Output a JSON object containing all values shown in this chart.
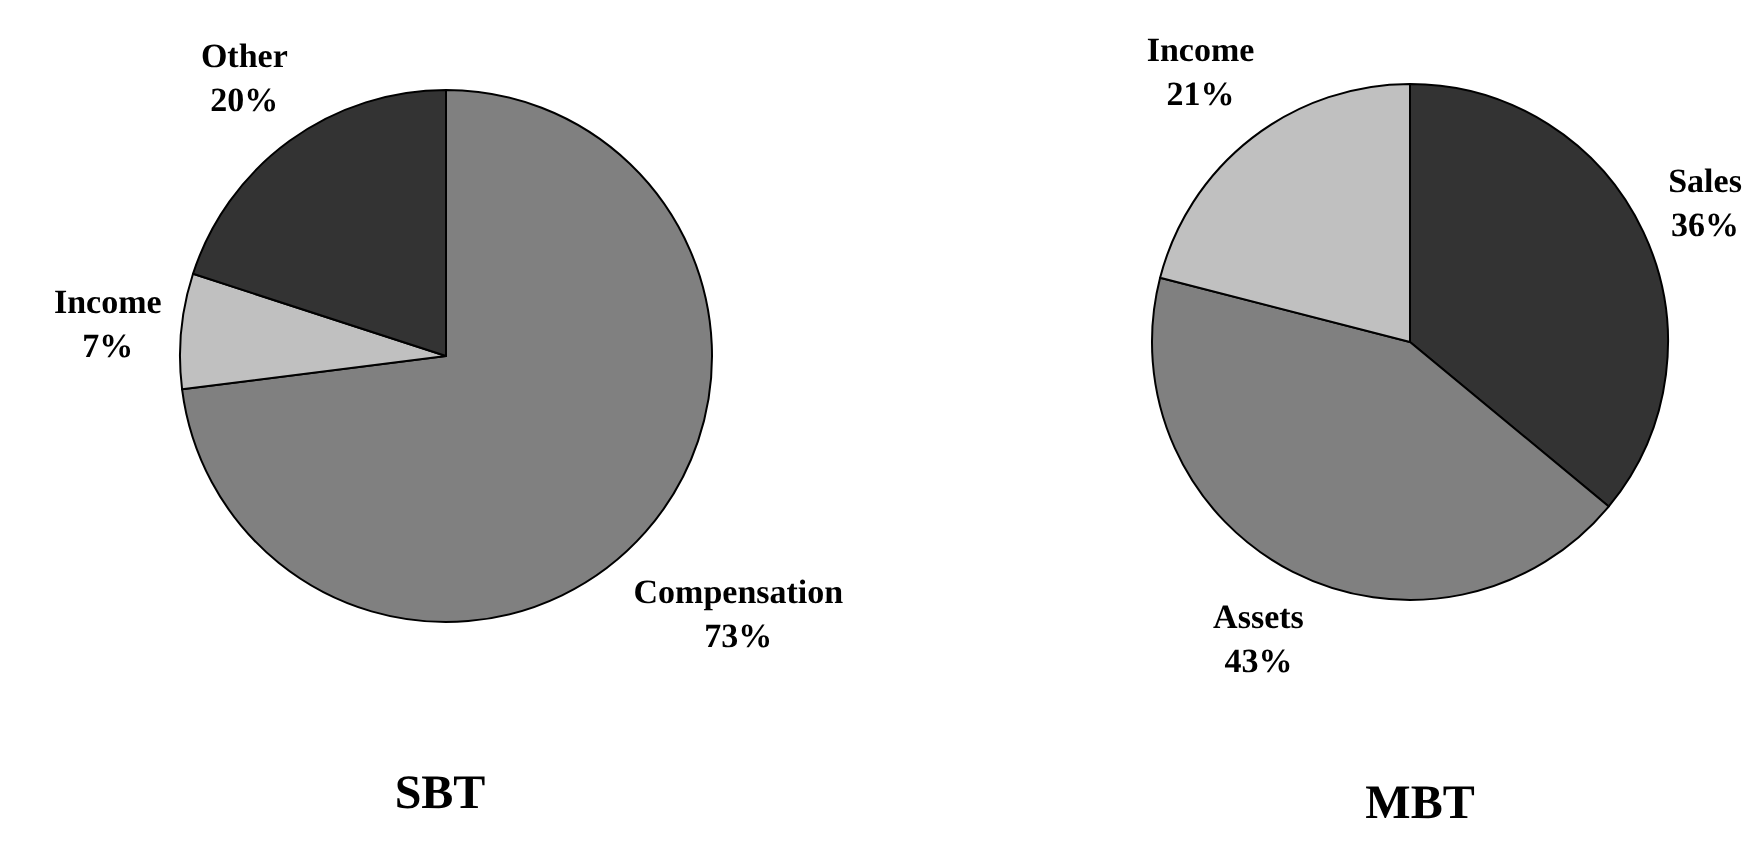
{
  "chart_data": [
    {
      "type": "pie",
      "title": "SBT",
      "categories": [
        "Compensation",
        "Income",
        "Other"
      ],
      "values": [
        73,
        7,
        20
      ],
      "colors": [
        "#808080",
        "#c0c0c0",
        "#333333"
      ],
      "value_labels": [
        "73%",
        "7%",
        "20%"
      ]
    },
    {
      "type": "pie",
      "title": "MBT",
      "categories": [
        "Sales",
        "Assets",
        "Income"
      ],
      "values": [
        36,
        43,
        21
      ],
      "colors": [
        "#333333",
        "#808080",
        "#c0c0c0"
      ],
      "value_labels": [
        "36%",
        "43%",
        "21%"
      ]
    }
  ]
}
